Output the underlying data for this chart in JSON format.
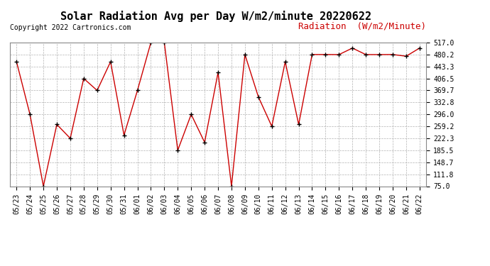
{
  "title": "Solar Radiation Avg per Day W/m2/minute 20220622",
  "copyright_text": "Copyright 2022 Cartronics.com",
  "legend_label": "Radiation  (W/m2/Minute)",
  "x_labels": [
    "05/23",
    "05/24",
    "05/25",
    "05/26",
    "05/27",
    "05/28",
    "05/29",
    "05/30",
    "05/31",
    "06/01",
    "06/02",
    "06/03",
    "06/04",
    "06/05",
    "06/06",
    "06/07",
    "06/08",
    "06/09",
    "06/10",
    "06/11",
    "06/12",
    "06/13",
    "06/14",
    "06/15",
    "06/16",
    "06/17",
    "06/18",
    "06/19",
    "06/20",
    "06/21",
    "06/22"
  ],
  "y_values": [
    458.0,
    296.0,
    75.0,
    265.0,
    222.3,
    406.5,
    369.7,
    458.0,
    232.0,
    369.7,
    517.0,
    517.0,
    185.5,
    296.0,
    210.0,
    425.0,
    75.0,
    480.2,
    350.0,
    259.2,
    458.0,
    265.0,
    480.2,
    480.2,
    480.0,
    500.0,
    480.0,
    480.0,
    480.2,
    475.0,
    500.0
  ],
  "ylim_min": 75.0,
  "ylim_max": 517.0,
  "yticks": [
    75.0,
    111.8,
    148.7,
    185.5,
    222.3,
    259.2,
    296.0,
    332.8,
    369.7,
    406.5,
    443.3,
    480.2,
    517.0
  ],
  "line_color": "#cc0000",
  "marker_color": "#000000",
  "background_color": "#ffffff",
  "grid_color": "#aaaaaa",
  "title_fontsize": 11,
  "copyright_fontsize": 7,
  "legend_fontsize": 9,
  "tick_fontsize": 7
}
